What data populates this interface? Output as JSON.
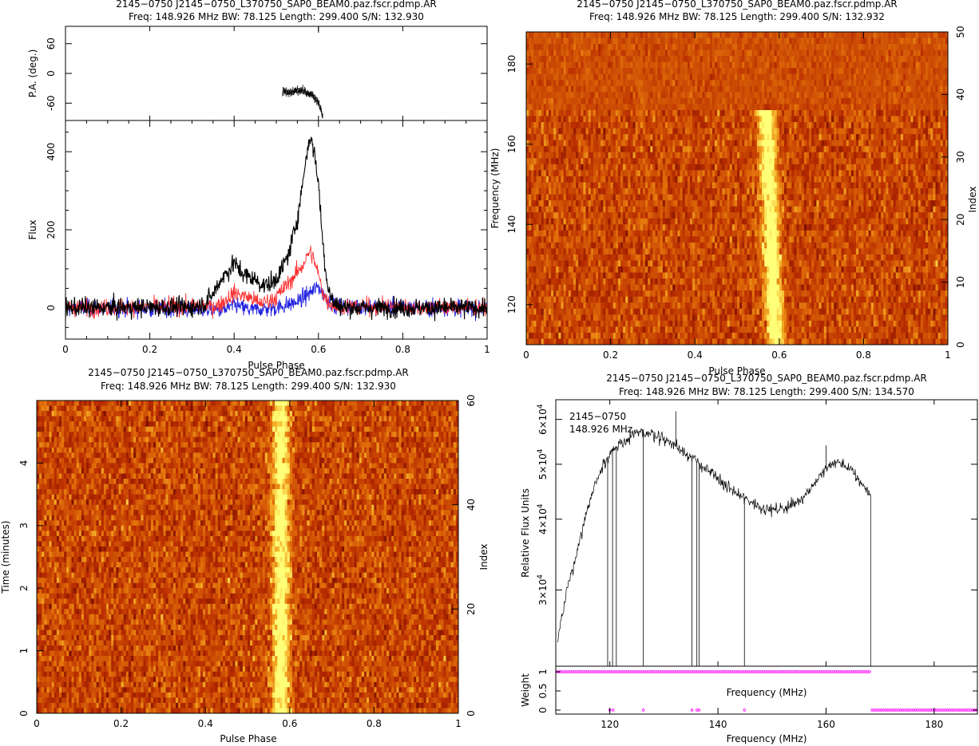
{
  "colors": {
    "total_intensity": "#000000",
    "linear_pol": "#ff3030",
    "circular_pol": "#2020e0",
    "weight": "#ff00ff",
    "heat_low": "#7a0c00",
    "heat_high": "#ffff70"
  },
  "chart_data": [
    {
      "type": "line",
      "panel": "profile",
      "title": "2145−0750  J2145−0750_L370750_SAP0_BEAM0.paz.fscr.pdmp.AR",
      "subtitle": "Freq: 148.926 MHz BW: 78.125 Length: 299.400 S/N: 132.930",
      "xlabel": "Pulse Phase",
      "ylabel": "Flux",
      "pa_ylabel": "P.A. (deg.)",
      "xlim": [
        0,
        1
      ],
      "ylim": [
        -80,
        480
      ],
      "pa_ylim": [
        -95,
        95
      ],
      "xticks": [
        "0",
        "0.2",
        "0.4",
        "0.6",
        "0.8",
        "1"
      ],
      "yticks": [
        "0",
        "200",
        "400"
      ],
      "pa_yticks": [
        "-60",
        "0",
        "60"
      ],
      "series": [
        {
          "key": "total",
          "color_key": "total_intensity",
          "x": [
            0.0,
            0.3,
            0.33,
            0.35,
            0.37,
            0.39,
            0.4,
            0.41,
            0.43,
            0.45,
            0.47,
            0.49,
            0.51,
            0.53,
            0.55,
            0.56,
            0.57,
            0.58,
            0.59,
            0.6,
            0.61,
            0.62,
            0.63,
            0.64,
            0.66,
            0.7,
            1.0
          ],
          "values": [
            0,
            2,
            10,
            35,
            75,
            100,
            118,
            98,
            82,
            72,
            58,
            62,
            92,
            140,
            230,
            300,
            380,
            440,
            400,
            320,
            170,
            70,
            25,
            8,
            2,
            0,
            0
          ]
        },
        {
          "key": "linear",
          "color_key": "linear_pol",
          "x": [
            0.0,
            0.36,
            0.38,
            0.4,
            0.42,
            0.44,
            0.46,
            0.48,
            0.5,
            0.52,
            0.54,
            0.56,
            0.57,
            0.58,
            0.59,
            0.6,
            0.61,
            0.62,
            0.64,
            1.0
          ],
          "values": [
            0,
            5,
            20,
            38,
            32,
            25,
            12,
            18,
            28,
            52,
            78,
            105,
            125,
            145,
            120,
            85,
            42,
            18,
            5,
            0
          ]
        },
        {
          "key": "circular",
          "color_key": "circular_pol",
          "x": [
            0.0,
            0.38,
            0.4,
            0.42,
            0.44,
            0.5,
            0.55,
            0.58,
            0.6,
            0.62,
            0.64,
            1.0
          ],
          "values": [
            0,
            -5,
            8,
            0,
            -5,
            0,
            15,
            38,
            55,
            22,
            5,
            0
          ]
        }
      ],
      "pa_points": {
        "x": [
          0.515,
          0.53,
          0.545,
          0.56,
          0.57,
          0.58,
          0.59,
          0.6,
          0.605,
          0.61
        ],
        "values": [
          -37,
          -40,
          -35,
          -35,
          -38,
          -40,
          -48,
          -58,
          -70,
          -85
        ]
      },
      "noise_rms": 12
    },
    {
      "type": "heatmap",
      "panel": "freq_phase",
      "title": "2145−0750  J2145−0750_L370750_SAP0_BEAM0.paz.fscr.pdmp.AR",
      "subtitle": "Freq: 148.926 MHz BW: 78.125 Length: 299.400 S/N: 132.932",
      "xlabel": "Pulse Phase",
      "ylabel": "Frequency (MHz)",
      "y2label": "Index",
      "xlim": [
        0,
        1
      ],
      "ylim": [
        110,
        188
      ],
      "y2lim": [
        0,
        50
      ],
      "xticks": [
        "0",
        "0.2",
        "0.4",
        "0.6",
        "0.8",
        "1"
      ],
      "yticks": [
        "120",
        "140",
        "160",
        "180"
      ],
      "y2ticks": [
        "0",
        "10",
        "20",
        "30",
        "40",
        "50"
      ],
      "pulse_center": 0.58,
      "pulse_width": 0.02,
      "signal_top_mhz": 169
    },
    {
      "type": "heatmap",
      "panel": "time_phase",
      "title": "2145−0750  J2145−0750_L370750_SAP0_BEAM0.paz.fscr.pdmp.AR",
      "subtitle": "Freq: 148.926 MHz BW: 78.125 Length: 299.400 S/N: 132.930",
      "xlabel": "Pulse Phase",
      "ylabel": "Time (minutes)",
      "y2label": "Index",
      "xlim": [
        0,
        1
      ],
      "ylim": [
        0,
        5
      ],
      "y2lim": [
        0,
        60
      ],
      "xticks": [
        "0",
        "0.2",
        "0.4",
        "0.6",
        "0.8",
        "1"
      ],
      "yticks": [
        "0",
        "1",
        "2",
        "3",
        "4"
      ],
      "y2ticks": [
        "0",
        "20",
        "40",
        "60"
      ],
      "pulse_center": 0.58,
      "pulse_width": 0.02
    },
    {
      "type": "line",
      "panel": "bandpass",
      "title": "2145−0750  J2145−0750_L370750_SAP0_BEAM0.paz.fscr.pdmp.AR",
      "subtitle": "Freq: 148.926 MHz BW: 78.125 Length: 299.400 S/N: 134.570",
      "legend_lines": [
        "2145−0750",
        "148.926 MHz"
      ],
      "xlabel": "Frequency (MHz)",
      "xlabel_inner": "Frequency (MHz)",
      "ylabel": "Relative Flux Units",
      "weight_ylabel": "Weight",
      "xlim": [
        110,
        188
      ],
      "ylim": [
        22000,
        65000
      ],
      "xticks": [
        "120",
        "140",
        "160",
        "180"
      ],
      "yticks": [
        {
          "value": 30000,
          "base": "3×10",
          "exp": "4"
        },
        {
          "value": 40000,
          "base": "4×10",
          "exp": "4"
        },
        {
          "value": 50000,
          "base": "5×10",
          "exp": "4"
        },
        {
          "value": 60000,
          "base": "6×10",
          "exp": "4"
        }
      ],
      "weight_yticks": [
        "0",
        "0.5",
        "1"
      ],
      "x": [
        110.3,
        112,
        114,
        116,
        118,
        120,
        122,
        124,
        126,
        128,
        130,
        132,
        134,
        136,
        138,
        140,
        142,
        144,
        146,
        148,
        150,
        152,
        154,
        156,
        158,
        160,
        161,
        162,
        164,
        166,
        168.3
      ],
      "values": [
        24000,
        30000,
        35000,
        42000,
        48000,
        52000,
        54500,
        56000,
        57000,
        56500,
        55500,
        54000,
        52500,
        50500,
        49000,
        47000,
        45500,
        44000,
        43000,
        42000,
        41500,
        41800,
        42500,
        44000,
        46500,
        49000,
        50000,
        50500,
        49500,
        47000,
        44000
      ],
      "dips": [
        119.6,
        120.5,
        121.2,
        126.2,
        135.2,
        136.1,
        136.5,
        144.9
      ],
      "spikes": [
        {
          "x": 132.2,
          "y": 62000
        },
        {
          "x": 160.0,
          "y": 54000
        }
      ],
      "weights": {
        "one_ranges": [
          [
            110.3,
            168.3
          ]
        ],
        "zero_points": [
          120.0,
          120.6,
          126.2,
          135.2,
          136.1,
          136.5,
          144.9
        ],
        "zero_range": [
          168.5,
          187.8
        ]
      }
    }
  ]
}
